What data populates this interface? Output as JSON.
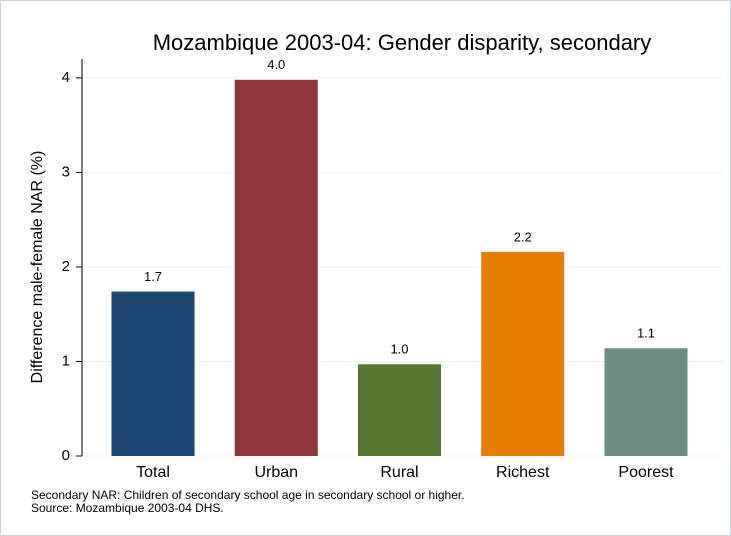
{
  "chart_data": {
    "type": "bar",
    "title": "Mozambique 2003-04: Gender disparity, secondary",
    "y_label": "Difference male-female NAR (%)",
    "categories": [
      "Total",
      "Urban",
      "Rural",
      "Richest",
      "Poorest"
    ],
    "values": [
      1.74,
      3.98,
      0.97,
      2.16,
      1.14
    ],
    "value_labels": [
      "1.7",
      "4.0",
      "1.0",
      "2.2",
      "1.1"
    ],
    "colors": [
      "#1a476f",
      "#90353b",
      "#55752f",
      "#e37e00",
      "#6e8e84"
    ],
    "ylim": [
      0,
      4.2
    ],
    "yticks": [
      0,
      1,
      2,
      3,
      4
    ],
    "grid": true,
    "notes": [
      "Secondary NAR: Children of secondary school age in secondary school or higher.",
      "Source: Mozambique 2003-04 DHS."
    ]
  }
}
